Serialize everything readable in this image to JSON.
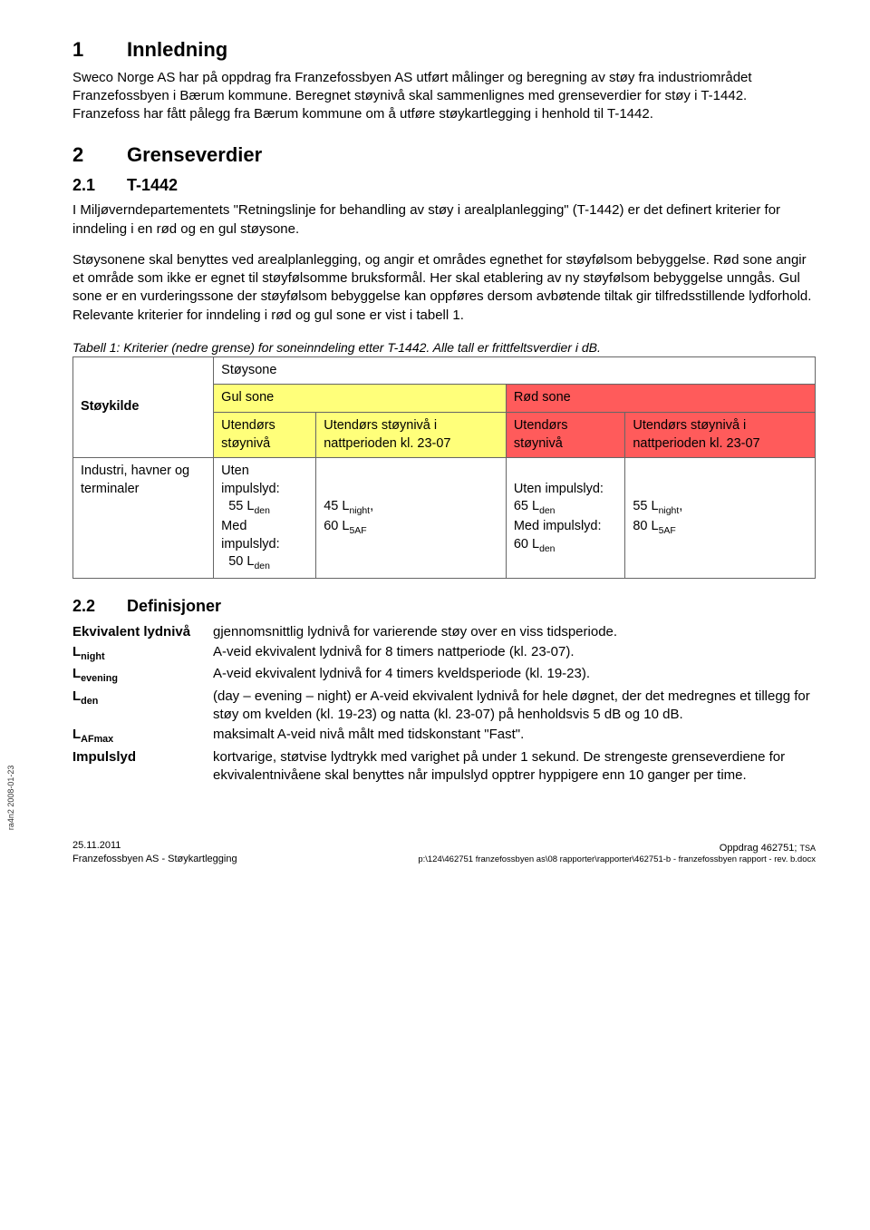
{
  "h1": {
    "num": "1",
    "title": "Innledning"
  },
  "p1": "Sweco Norge AS har på oppdrag fra Franzefossbyen AS utført målinger og beregning av støy fra industriområdet Franzefossbyen i Bærum kommune. Beregnet støynivå skal sammenlignes med grenseverdier for støy i T-1442. Franzefoss har fått pålegg fra Bærum kommune om å utføre støykartlegging i henhold til T-1442.",
  "h2": {
    "num": "2",
    "title": "Grenseverdier"
  },
  "h21": {
    "num": "2.1",
    "title": "T-1442"
  },
  "p2": "I Miljøverndepartementets \"Retningslinje for behandling av støy i arealplanlegging\" (T-1442) er det definert kriterier for inndeling i en rød og en gul støysone.",
  "p3": "Støysonene skal benyttes ved arealplanlegging, og angir et områdes egnethet for støyfølsom bebyggelse. Rød sone angir et område som ikke er egnet til støyfølsomme bruksformål. Her skal etablering av ny støyfølsom bebyggelse unngås. Gul sone er en vurderingssone der støyfølsom bebyggelse kan oppføres dersom avbøtende tiltak gir tilfredsstillende lydforhold. Relevante kriterier for inndeling i rød og gul sone er vist i tabell 1.",
  "caption1": "Tabell 1: Kriterier (nedre grense) for soneinndeling etter T-1442. Alle tall er frittfeltsverdier i dB.",
  "table": {
    "colors": {
      "yellow": "#ffff7a",
      "red": "#ff5b5b",
      "border": "#666666",
      "bg": "#ffffff"
    },
    "header_toprow": "Støysone",
    "header_gul": "Gul sone",
    "header_rod": "Rød sone",
    "col_source": "Støykilde",
    "col_out1": "Utendørs støynivå",
    "col_night": "Utendørs støynivå i nattperioden kl. 23-07",
    "row1": {
      "source": "Industri, havner og terminaler",
      "gul_out_a": "Uten impulslyd:",
      "gul_out_b": "55 L",
      "gul_out_b_sub": "den",
      "gul_out_c": "Med impulslyd:",
      "gul_out_d": "50 L",
      "gul_out_d_sub": "den",
      "gul_night_a": "45 L",
      "gul_night_a_sub": "night",
      "gul_night_b": "60 L",
      "gul_night_b_sub": "5AF",
      "rod_out_a": "Uten impulslyd: 65 L",
      "rod_out_a_sub": "den",
      "rod_out_b": "Med impulslyd: 60 L",
      "rod_out_b_sub": "den",
      "rod_night_a": "55 L",
      "rod_night_a_sub": "night",
      "rod_night_b": "80 L",
      "rod_night_b_sub": "5AF"
    }
  },
  "h22": {
    "num": "2.2",
    "title": "Definisjoner"
  },
  "defs": [
    {
      "term": "Ekvivalent lydnivå",
      "desc": "gjennomsnittlig lydnivå for varierende støy over en viss tidsperiode."
    },
    {
      "term_html": "L<sub>night</sub>",
      "desc": "A-veid ekvivalent lydnivå for 8 timers nattperiode (kl. 23-07)."
    },
    {
      "term_html": "L<sub>evening</sub>",
      "desc": "A-veid ekvivalent lydnivå for 4 timers kveldsperiode (kl. 19-23)."
    },
    {
      "term_html": "L<sub>den</sub>",
      "desc": "(day – evening – night) er A-veid ekvivalent lydnivå for hele døgnet, der det medregnes et tillegg for støy om kvelden (kl. 19-23) og natta (kl. 23-07) på henholdsvis 5 dB og 10 dB."
    },
    {
      "term_html": "L<sub>AFmax</sub>",
      "desc": "maksimalt A-veid nivå målt med tidskonstant \"Fast\"."
    },
    {
      "term": "Impulslyd",
      "desc": "kortvarige, støtvise lydtrykk med varighet på under 1 sekund. De strengeste grenseverdiene for ekvivalentnivåene skal benyttes når impulslyd opptrer hyppigere enn 10 ganger per time."
    }
  ],
  "sidetext": "ra4n2 2008-01-23",
  "footer": {
    "date": "25.11.2011",
    "left2": "Franzefossbyen AS - Støykartlegging",
    "right1": "Oppdrag 462751; ",
    "right1b": "TSA",
    "path": "p:\\124\\462751 franzefossbyen as\\08 rapporter\\rapporter\\462751-b - franzefossbyen rapport - rev. b.docx"
  }
}
